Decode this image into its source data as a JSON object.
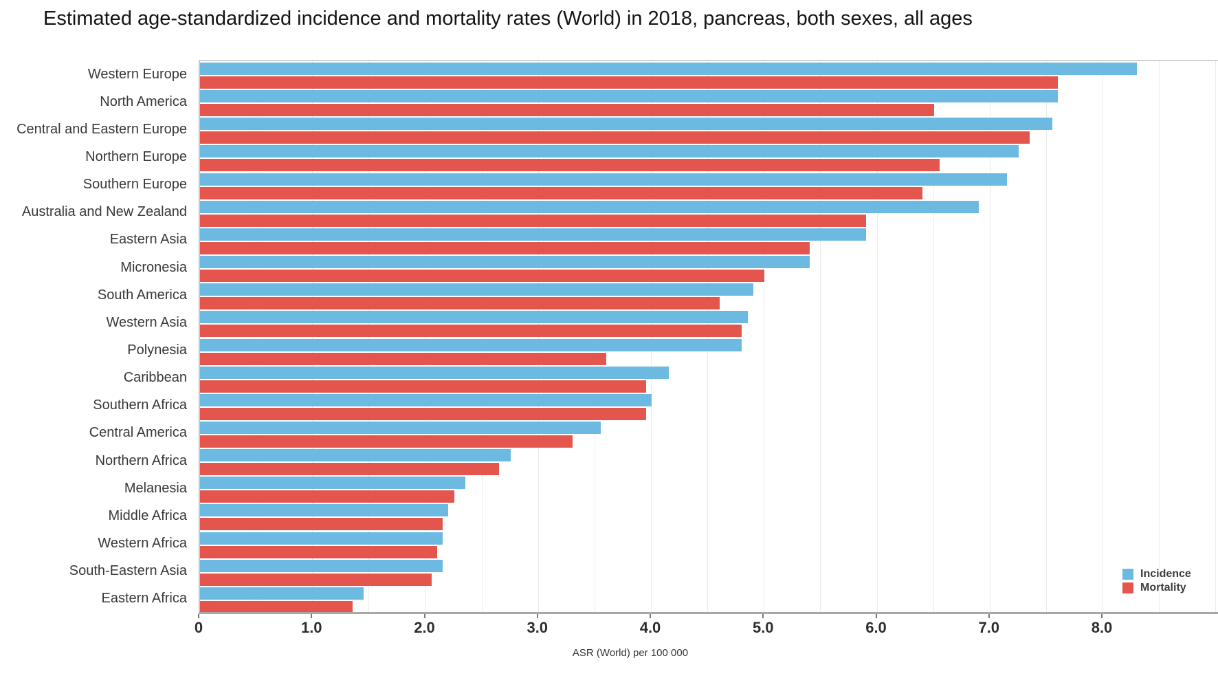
{
  "title": "Estimated age-standardized incidence and mortality rates (World) in 2018, pancreas, both sexes, all ages",
  "chart_data": {
    "type": "bar",
    "orientation": "horizontal",
    "categories": [
      "Western Europe",
      "North America",
      "Central and Eastern Europe",
      "Northern Europe",
      "Southern Europe",
      "Australia and New Zealand",
      "Eastern Asia",
      "Micronesia",
      "South America",
      "Western Asia",
      "Polynesia",
      "Caribbean",
      "Southern Africa",
      "Central America",
      "Northern Africa",
      "Melanesia",
      "Middle Africa",
      "Western Africa",
      "South-Eastern Asia",
      "Eastern Africa"
    ],
    "series": [
      {
        "name": "Incidence",
        "color": "#6CBAE2",
        "values": [
          8.3,
          7.6,
          7.55,
          7.25,
          7.15,
          6.9,
          5.9,
          5.4,
          4.9,
          4.85,
          4.8,
          4.15,
          4.0,
          3.55,
          2.75,
          2.35,
          2.2,
          2.15,
          2.15,
          1.45
        ]
      },
      {
        "name": "Mortality",
        "color": "#E4554D",
        "values": [
          7.6,
          6.5,
          7.35,
          6.55,
          6.4,
          5.9,
          5.4,
          5.0,
          4.6,
          4.8,
          3.6,
          3.95,
          3.95,
          3.3,
          2.65,
          2.25,
          2.15,
          2.1,
          2.05,
          1.35
        ]
      }
    ],
    "xlabel": "ASR (World) per 100 000",
    "xlim": [
      0,
      9.03
    ],
    "xticks": [
      "0",
      "1.0",
      "2.0",
      "3.0",
      "4.0",
      "5.0",
      "6.0",
      "7.0",
      "8.0"
    ],
    "gridlines": {
      "vertical_step": 0.5,
      "color": "#ebebeb"
    },
    "legend_position": "bottom-right",
    "sort": "descending by incidence"
  }
}
